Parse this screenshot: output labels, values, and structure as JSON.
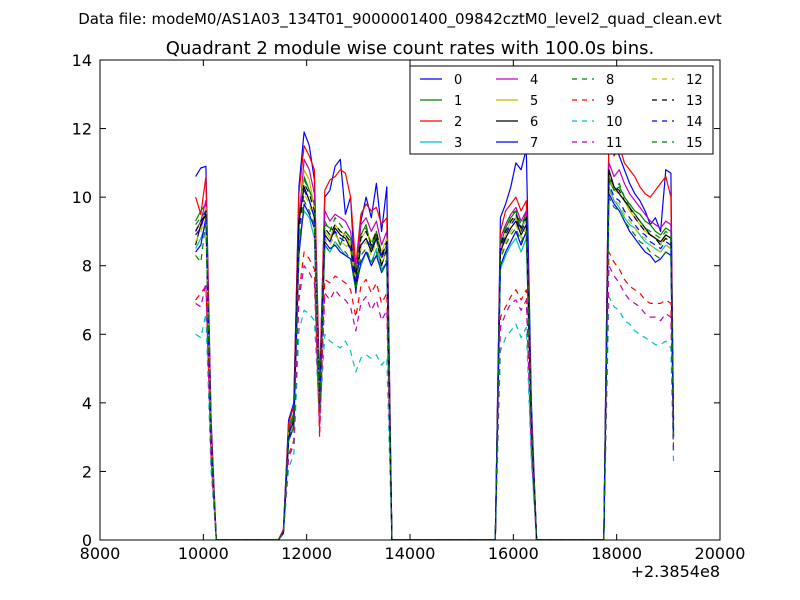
{
  "header": {
    "suptitle": "Data file: modeM0/AS1A03_134T01_9000001400_09842cztM0_level2_quad_clean.evt"
  },
  "chart_data": {
    "type": "line",
    "title": "Quadrant 2 module wise count rates with 100.0s bins.",
    "xlabel": "",
    "ylabel": "",
    "x_offset_label": "+2.3854e8",
    "xlim": [
      8000,
      20000
    ],
    "ylim": [
      0,
      14
    ],
    "xticks": [
      8000,
      10000,
      12000,
      14000,
      16000,
      18000,
      20000
    ],
    "yticks": [
      0,
      2,
      4,
      6,
      8,
      10,
      12,
      14
    ],
    "grid": false,
    "legend_position": "top-right",
    "segment_x": [
      [
        9850,
        9950,
        10050,
        10150,
        10250,
        10350
      ],
      [
        11450,
        11550,
        11650,
        11750,
        11850,
        11950,
        12050,
        12150,
        12250,
        12350,
        12450,
        12550,
        12650,
        12750,
        12850,
        12950,
        13050,
        13150,
        13250,
        13350,
        13450,
        13550,
        13650
      ],
      [
        15650,
        15750,
        15850,
        15950,
        16050,
        16150,
        16250,
        16350,
        16450
      ],
      [
        17750,
        17850,
        17950,
        18050,
        18150,
        18250,
        18350,
        18450,
        18550,
        18650,
        18750,
        18850,
        18950,
        19050,
        19100
      ]
    ],
    "zero_gaps": [
      [
        10350,
        11450
      ],
      [
        13650,
        15650
      ],
      [
        16450,
        17750
      ]
    ],
    "series": [
      {
        "name": "0",
        "color": "#0000ff",
        "dash": "solid",
        "segments": [
          [
            10.6,
            10.85,
            10.9,
            3.5,
            0,
            0
          ],
          [
            0,
            0.3,
            3.5,
            4.0,
            10.3,
            11.9,
            11.5,
            10.5,
            4.5,
            10.0,
            10.2,
            10.9,
            11.1,
            9.5,
            10.0,
            7.2,
            9.3,
            10.0,
            9.4,
            10.4,
            9.0,
            10.3,
            0
          ],
          [
            0,
            9.4,
            9.8,
            10.3,
            11.0,
            10.8,
            11.4,
            4.0,
            0
          ],
          [
            0,
            11.9,
            11.6,
            11.2,
            10.8,
            10.4,
            10.1,
            9.9,
            9.6,
            9.2,
            9.4,
            9.0,
            10.8,
            10.7,
            3.5
          ]
        ]
      },
      {
        "name": "1",
        "color": "#008000",
        "dash": "solid",
        "segments": [
          [
            9.3,
            9.6,
            9.8,
            3.0,
            0,
            0
          ],
          [
            0,
            0.2,
            3.3,
            3.7,
            9.5,
            10.6,
            10.2,
            9.8,
            4.0,
            9.2,
            9.1,
            9.0,
            8.6,
            9.0,
            8.8,
            7.6,
            8.9,
            9.2,
            8.5,
            8.9,
            8.3,
            8.6,
            0
          ],
          [
            0,
            8.6,
            9.1,
            9.4,
            9.6,
            9.0,
            9.6,
            3.5,
            0
          ],
          [
            0,
            10.5,
            10.2,
            10.3,
            10.0,
            9.8,
            9.6,
            9.5,
            9.3,
            9.2,
            9.0,
            8.9,
            9.1,
            9.0,
            3.5
          ]
        ]
      },
      {
        "name": "2",
        "color": "#ff0000",
        "dash": "solid",
        "segments": [
          [
            10.0,
            9.5,
            10.6,
            3.3,
            0,
            0
          ],
          [
            0,
            0.3,
            3.4,
            3.9,
            10.1,
            11.5,
            11.2,
            10.8,
            4.3,
            10.2,
            10.5,
            10.6,
            10.8,
            10.7,
            10.0,
            8.0,
            9.5,
            9.8,
            9.6,
            9.7,
            9.2,
            9.4,
            0
          ],
          [
            0,
            9.0,
            9.6,
            9.8,
            10.0,
            9.6,
            9.9,
            3.7,
            0
          ],
          [
            0,
            11.8,
            11.2,
            11.5,
            11.0,
            10.8,
            10.6,
            10.3,
            10.1,
            10.0,
            10.2,
            10.4,
            10.6,
            10.0,
            3.0
          ]
        ]
      },
      {
        "name": "3",
        "color": "#00bfbf",
        "dash": "solid",
        "segments": [
          [
            8.5,
            8.8,
            9.2,
            2.8,
            0,
            0
          ],
          [
            0,
            0.2,
            2.9,
            3.4,
            8.7,
            9.6,
            9.4,
            8.8,
            3.6,
            8.6,
            8.4,
            8.7,
            8.5,
            8.3,
            8.2,
            7.5,
            8.0,
            8.4,
            8.1,
            8.5,
            7.9,
            8.1,
            0
          ],
          [
            0,
            7.9,
            8.3,
            8.6,
            8.8,
            8.4,
            8.8,
            3.2,
            0
          ],
          [
            0,
            10.3,
            9.9,
            9.7,
            9.4,
            9.2,
            9.1,
            8.9,
            8.7,
            8.6,
            8.5,
            8.4,
            8.6,
            8.5,
            3.0
          ]
        ]
      },
      {
        "name": "4",
        "color": "#bf00bf",
        "dash": "solid",
        "segments": [
          [
            9.0,
            9.3,
            9.9,
            3.0,
            0,
            0
          ],
          [
            0,
            0.2,
            3.2,
            3.6,
            9.3,
            11.1,
            10.8,
            10.1,
            4.1,
            9.6,
            9.3,
            9.5,
            9.4,
            9.3,
            9.0,
            7.9,
            9.2,
            9.4,
            9.0,
            9.3,
            8.6,
            9.0,
            0
          ],
          [
            0,
            8.8,
            9.2,
            9.5,
            9.7,
            9.3,
            9.6,
            3.6,
            0
          ],
          [
            0,
            11.0,
            10.6,
            10.8,
            10.4,
            10.1,
            9.9,
            9.7,
            9.5,
            9.3,
            9.2,
            9.1,
            9.3,
            9.2,
            3.3
          ]
        ]
      },
      {
        "name": "5",
        "color": "#bfbf00",
        "dash": "solid",
        "segments": [
          [
            8.9,
            9.1,
            9.7,
            2.9,
            0,
            0
          ],
          [
            0,
            0.2,
            3.1,
            3.5,
            9.0,
            10.8,
            10.5,
            9.7,
            3.9,
            9.0,
            8.8,
            9.2,
            9.0,
            8.9,
            8.6,
            7.7,
            8.8,
            9.0,
            8.7,
            9.0,
            8.4,
            8.8,
            0
          ],
          [
            0,
            8.5,
            8.9,
            9.3,
            9.4,
            9.0,
            9.4,
            3.4,
            0
          ],
          [
            0,
            10.6,
            10.2,
            10.1,
            9.9,
            9.6,
            9.4,
            9.2,
            9.0,
            8.9,
            8.8,
            8.6,
            8.9,
            8.8,
            3.2
          ]
        ]
      },
      {
        "name": "6",
        "color": "#000000",
        "dash": "solid",
        "segments": [
          [
            8.6,
            9.2,
            9.5,
            2.9,
            0,
            0
          ],
          [
            0,
            0.2,
            3.0,
            3.5,
            9.3,
            10.3,
            9.9,
            9.4,
            3.8,
            8.9,
            8.7,
            9.1,
            8.9,
            8.8,
            8.5,
            7.4,
            8.6,
            8.8,
            8.4,
            8.8,
            8.0,
            8.5,
            0
          ],
          [
            0,
            8.4,
            8.8,
            9.1,
            9.3,
            8.9,
            9.2,
            3.3,
            0
          ],
          [
            0,
            10.8,
            10.3,
            10.1,
            9.9,
            9.7,
            9.5,
            9.3,
            9.1,
            8.9,
            8.8,
            8.7,
            8.9,
            8.8,
            3.2
          ]
        ]
      },
      {
        "name": "7",
        "color": "#0000ff",
        "dash": "solid",
        "segments": [
          [
            8.4,
            8.6,
            9.4,
            2.8,
            0,
            0
          ],
          [
            0,
            0.2,
            2.9,
            3.3,
            8.3,
            9.8,
            9.5,
            9.1,
            3.7,
            8.7,
            8.5,
            8.6,
            8.4,
            8.3,
            8.2,
            7.3,
            8.1,
            8.4,
            8.0,
            8.3,
            7.8,
            8.1,
            0
          ],
          [
            0,
            8.0,
            8.4,
            8.7,
            9.0,
            8.6,
            9.0,
            3.2,
            0
          ],
          [
            0,
            10.1,
            9.8,
            9.6,
            9.3,
            9.0,
            8.8,
            8.6,
            8.4,
            8.3,
            8.1,
            8.2,
            8.4,
            8.3,
            3.0
          ]
        ]
      },
      {
        "name": "8",
        "color": "#008000",
        "dash": "dashed",
        "segments": [
          [
            9.2,
            9.4,
            9.6,
            3.0,
            0,
            0
          ],
          [
            0,
            0.2,
            3.2,
            3.6,
            9.1,
            10.5,
            10.2,
            9.8,
            4.0,
            9.3,
            9.0,
            9.4,
            9.2,
            9.0,
            8.8,
            7.8,
            8.9,
            9.1,
            8.6,
            9.0,
            8.2,
            8.7,
            0
          ],
          [
            0,
            8.7,
            9.2,
            9.5,
            9.6,
            9.2,
            9.5,
            3.4,
            0
          ],
          [
            0,
            10.6,
            10.2,
            10.4,
            10.0,
            9.7,
            9.5,
            9.3,
            9.1,
            9.0,
            8.9,
            8.8,
            9.0,
            8.9,
            3.3
          ]
        ]
      },
      {
        "name": "9",
        "color": "#ff0000",
        "dash": "dashed",
        "segments": [
          [
            7.0,
            7.2,
            7.4,
            2.4,
            0,
            0
          ],
          [
            0,
            0.2,
            2.5,
            2.9,
            7.2,
            8.4,
            8.2,
            7.9,
            3.0,
            7.6,
            7.5,
            7.7,
            7.6,
            7.5,
            7.3,
            6.5,
            7.4,
            7.6,
            7.2,
            7.5,
            6.9,
            7.2,
            0
          ],
          [
            0,
            6.5,
            6.8,
            7.1,
            7.3,
            7.0,
            7.3,
            2.6,
            0
          ],
          [
            0,
            8.4,
            8.1,
            7.9,
            7.6,
            7.4,
            7.3,
            7.2,
            7.0,
            6.9,
            6.9,
            6.9,
            7.0,
            6.9,
            2.7
          ]
        ]
      },
      {
        "name": "10",
        "color": "#00bfbf",
        "dash": "dashed",
        "segments": [
          [
            6.0,
            5.9,
            6.6,
            2.0,
            0,
            0
          ],
          [
            0,
            0.2,
            2.1,
            2.5,
            6.1,
            6.7,
            6.6,
            6.4,
            3.5,
            6.0,
            5.8,
            5.7,
            5.6,
            5.8,
            5.5,
            4.9,
            5.3,
            5.4,
            5.3,
            5.4,
            5.1,
            5.3,
            0
          ],
          [
            0,
            5.5,
            5.9,
            6.1,
            6.3,
            5.9,
            6.2,
            2.3,
            0
          ],
          [
            0,
            7.1,
            6.8,
            6.7,
            6.4,
            6.3,
            6.1,
            6.0,
            5.9,
            5.8,
            5.7,
            5.7,
            5.8,
            5.6,
            2.3
          ]
        ]
      },
      {
        "name": "11",
        "color": "#bf00bf",
        "dash": "dashed",
        "segments": [
          [
            6.9,
            6.8,
            7.5,
            2.3,
            0,
            0
          ],
          [
            0,
            0.2,
            2.4,
            2.8,
            7.0,
            8.0,
            7.8,
            7.5,
            3.2,
            7.2,
            7.0,
            7.3,
            7.1,
            7.0,
            6.8,
            6.1,
            6.9,
            7.1,
            6.7,
            7.0,
            6.4,
            6.7,
            0
          ],
          [
            0,
            6.2,
            6.6,
            6.9,
            7.0,
            6.7,
            7.0,
            2.5,
            0
          ],
          [
            0,
            8.0,
            7.7,
            7.5,
            7.2,
            7.0,
            6.9,
            6.8,
            6.6,
            6.5,
            6.5,
            6.4,
            6.6,
            6.5,
            2.6
          ]
        ]
      },
      {
        "name": "12",
        "color": "#bfbf00",
        "dash": "dashed",
        "segments": [
          [
            8.7,
            9.0,
            9.4,
            2.9,
            0,
            0
          ],
          [
            0,
            0.2,
            3.0,
            3.4,
            8.8,
            10.1,
            9.8,
            9.3,
            3.8,
            8.8,
            8.6,
            8.9,
            8.7,
            8.6,
            8.4,
            7.6,
            8.5,
            8.7,
            8.3,
            8.7,
            8.1,
            8.4,
            0
          ],
          [
            0,
            8.3,
            8.7,
            9.0,
            9.2,
            8.8,
            9.1,
            3.3,
            0
          ],
          [
            0,
            10.2,
            9.9,
            9.8,
            9.5,
            9.3,
            9.1,
            8.9,
            8.8,
            8.6,
            8.5,
            8.4,
            8.6,
            8.5,
            3.1
          ]
        ]
      },
      {
        "name": "13",
        "color": "#000000",
        "dash": "dashed",
        "segments": [
          [
            9.0,
            9.3,
            9.5,
            3.0,
            0,
            0
          ],
          [
            0,
            0.2,
            3.1,
            3.5,
            9.2,
            10.4,
            10.1,
            9.6,
            4.0,
            9.1,
            8.9,
            9.2,
            9.0,
            8.9,
            8.7,
            7.7,
            8.8,
            9.0,
            8.6,
            9.0,
            8.3,
            8.7,
            0
          ],
          [
            0,
            8.6,
            9.0,
            9.3,
            9.5,
            9.1,
            9.4,
            3.4,
            0
          ],
          [
            0,
            10.7,
            10.3,
            10.2,
            9.9,
            9.7,
            9.4,
            9.2,
            9.0,
            8.9,
            8.8,
            8.6,
            8.8,
            8.7,
            3.2
          ]
        ]
      },
      {
        "name": "14",
        "color": "#0000ff",
        "dash": "dashed",
        "segments": [
          [
            8.9,
            9.1,
            9.6,
            2.9,
            0,
            0
          ],
          [
            0,
            0.2,
            3.1,
            3.5,
            9.0,
            10.2,
            9.9,
            9.4,
            3.9,
            8.9,
            8.7,
            9.0,
            8.8,
            8.7,
            8.5,
            7.5,
            8.6,
            8.8,
            8.5,
            8.8,
            8.2,
            8.6,
            0
          ],
          [
            0,
            8.5,
            8.9,
            9.2,
            9.4,
            9.0,
            9.3,
            3.3,
            0
          ],
          [
            0,
            10.4,
            10.0,
            9.9,
            9.6,
            9.4,
            9.2,
            9.0,
            8.9,
            8.7,
            8.6,
            8.5,
            8.7,
            8.6,
            3.1
          ]
        ]
      },
      {
        "name": "15",
        "color": "#008000",
        "dash": "dashed",
        "segments": [
          [
            8.3,
            8.1,
            9.3,
            2.8,
            0,
            0
          ],
          [
            0,
            0.2,
            2.9,
            3.3,
            8.5,
            9.9,
            9.6,
            9.2,
            3.7,
            8.6,
            8.4,
            8.7,
            8.5,
            8.4,
            8.2,
            7.3,
            8.3,
            8.5,
            8.1,
            8.4,
            7.8,
            8.2,
            0
          ],
          [
            0,
            8.2,
            8.6,
            8.9,
            9.1,
            8.7,
            9.0,
            3.2,
            0
          ],
          [
            0,
            10.0,
            9.7,
            9.6,
            9.3,
            9.1,
            8.9,
            8.7,
            8.6,
            8.4,
            8.3,
            8.2,
            8.4,
            8.3,
            3.0
          ]
        ]
      }
    ]
  }
}
